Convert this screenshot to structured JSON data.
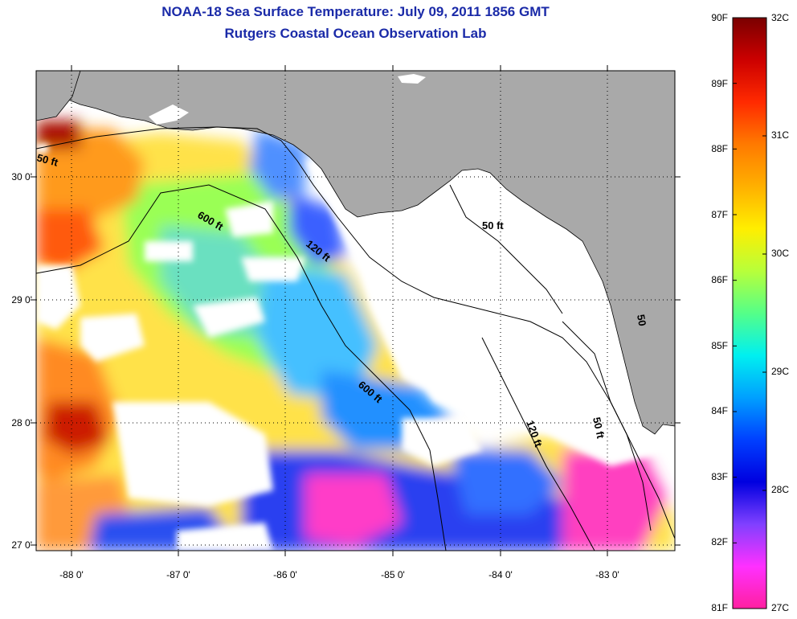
{
  "title": {
    "line1": "NOAA-18 Sea Surface Temperature:  July 09, 2011 1856 GMT",
    "line2": "Rutgers Coastal Ocean Observation Lab"
  },
  "map": {
    "lat_range": [
      26.95,
      30.85
    ],
    "lon_range": [
      -88.35,
      -82.5
    ],
    "lat_ticks": [
      "27 0'",
      "28 0'",
      "29 0'",
      "30 0'"
    ],
    "lon_ticks": [
      "-88 0'",
      "-87 0'",
      "-86 0'",
      "-85 0'",
      "-84 0'",
      "-83 0'"
    ],
    "land_color": "#a9a9a9",
    "cloud_color": "#ffffff",
    "contours": [
      {
        "label": "50 ft"
      },
      {
        "label": "600 ft"
      },
      {
        "label": "120 ft"
      },
      {
        "label": "50 ft"
      },
      {
        "label": "600 ft"
      },
      {
        "label": "120 ft"
      },
      {
        "label": "50 ft"
      },
      {
        "label": "50"
      }
    ]
  },
  "colorbar": {
    "fahrenheit_labels": [
      "90F",
      "89F",
      "88F",
      "87F",
      "86F",
      "85F",
      "84F",
      "83F",
      "82F",
      "81F"
    ],
    "celsius_labels": [
      "32C",
      "31C",
      "30C",
      "29C",
      "28C",
      "27C"
    ],
    "color_stops": [
      "#7a0000",
      "#cc0000",
      "#ff2a00",
      "#ff7a00",
      "#ffb000",
      "#ffee00",
      "#b8ff3a",
      "#55ff88",
      "#00f0f0",
      "#00a0ff",
      "#0040ff",
      "#0000e0",
      "#8040ff",
      "#ff30ff",
      "#ff20a0"
    ]
  }
}
